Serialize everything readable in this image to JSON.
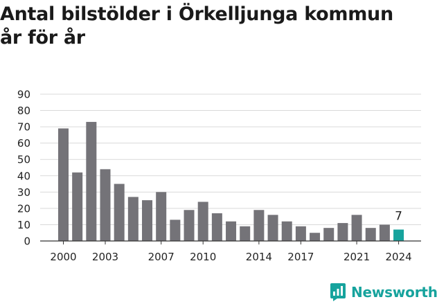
{
  "header": {
    "title_line1": "Antal bilstölder i Örkelljunga kommun",
    "title_line2": "år för år"
  },
  "chart_data": {
    "type": "bar",
    "title": "Antal bilstölder i Örkelljunga kommun år för år",
    "xlabel": "",
    "ylabel": "",
    "categories": [
      "2000",
      "2001",
      "2002",
      "2003",
      "2004",
      "2005",
      "2006",
      "2007",
      "2008",
      "2009",
      "2010",
      "2011",
      "2012",
      "2013",
      "2014",
      "2015",
      "2016",
      "2017",
      "2018",
      "2019",
      "2020",
      "2021",
      "2022",
      "2023",
      "2024"
    ],
    "values": [
      69,
      42,
      73,
      44,
      35,
      27,
      25,
      30,
      13,
      19,
      24,
      17,
      12,
      9,
      19,
      16,
      12,
      9,
      5,
      8,
      11,
      16,
      8,
      10,
      7
    ],
    "x_tick_labels": [
      "2000",
      "2003",
      "2007",
      "2010",
      "2014",
      "2017",
      "2021",
      "2024"
    ],
    "y_ticks": [
      0,
      10,
      20,
      30,
      40,
      50,
      60,
      70,
      80,
      90
    ],
    "ylim": [
      0,
      90
    ],
    "grid": true,
    "highlight": {
      "category": "2024",
      "label": "7"
    },
    "colors": {
      "bar": "#747378",
      "highlight": "#16a39d",
      "grid": "#d9d9d9",
      "axis": "#333333"
    }
  },
  "brand": {
    "name": "Newsworthy",
    "icon": "newsworthy-logo-icon",
    "color": "#16a39d"
  }
}
